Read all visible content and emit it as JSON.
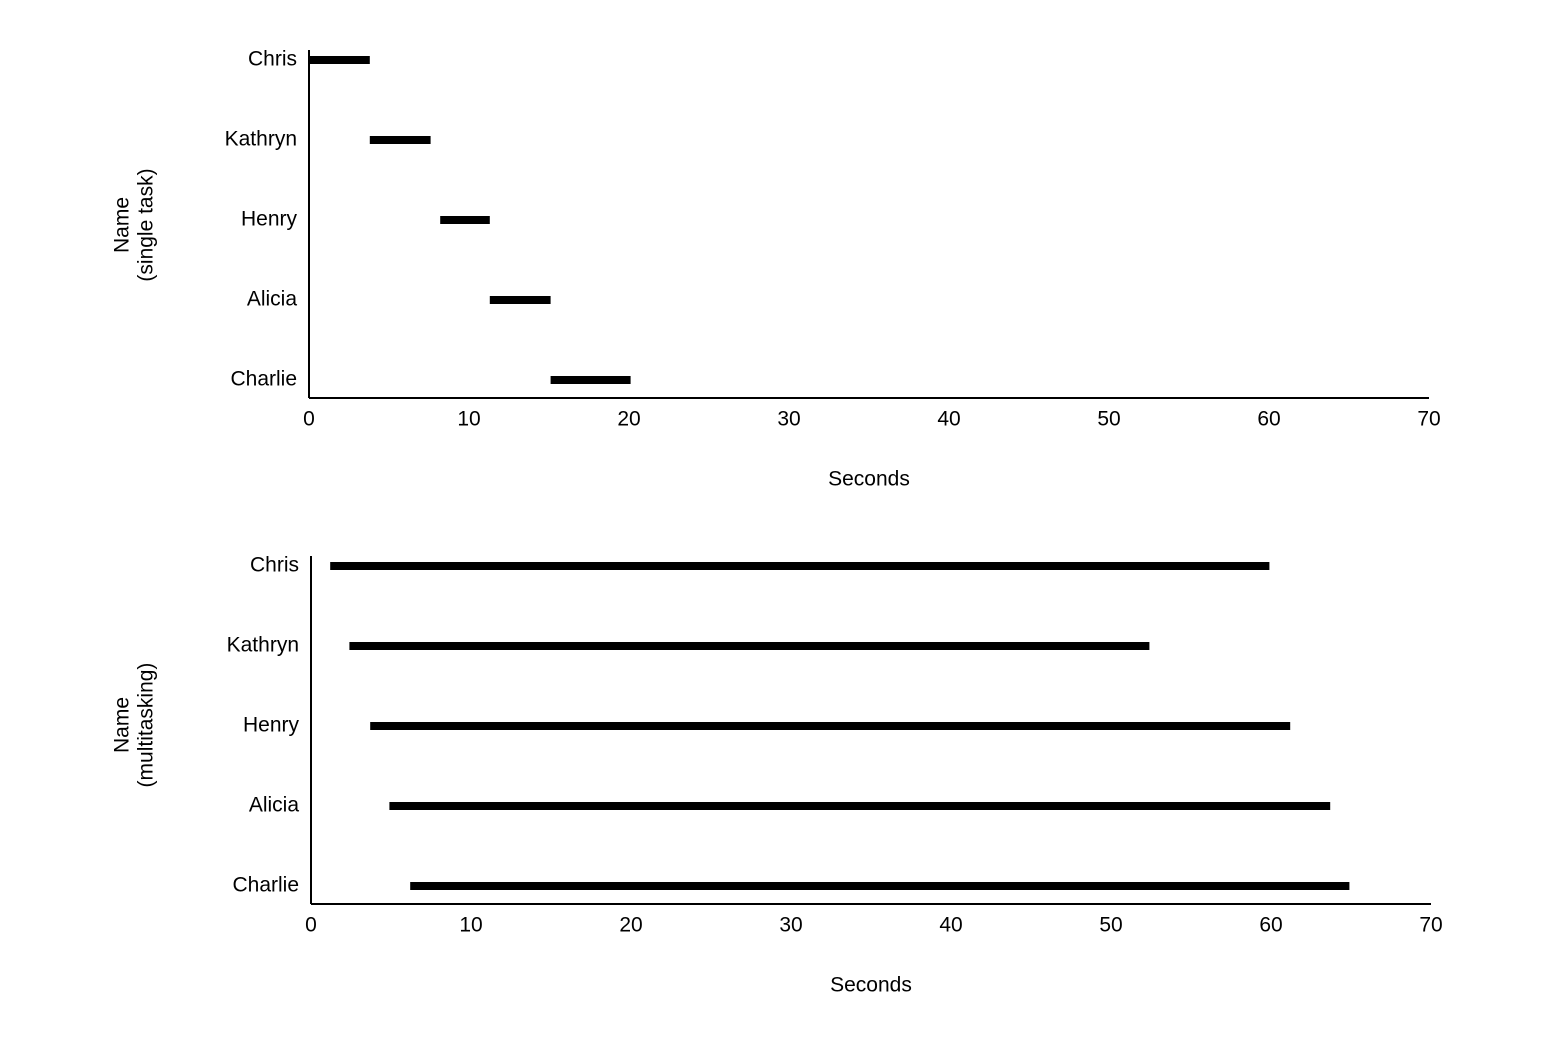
{
  "chart_data": [
    {
      "type": "range",
      "ylabel": [
        "Name",
        "(single task)"
      ],
      "xlabel": "Seconds",
      "categories": [
        "Chris",
        "Kathryn",
        "Henry",
        "Alicia",
        "Charlie"
      ],
      "start": [
        0,
        3.8,
        8.2,
        11.3,
        15.1
      ],
      "end": [
        3.8,
        7.6,
        11.3,
        15.1,
        20.1
      ],
      "color": "#000000",
      "xlim": [
        0,
        70
      ],
      "xticks": [
        0,
        10,
        20,
        30,
        40,
        50,
        60,
        70
      ]
    },
    {
      "type": "range",
      "ylabel": [
        "Name",
        "(multitasking)"
      ],
      "xlabel": "Seconds",
      "categories": [
        "Chris",
        "Kathryn",
        "Henry",
        "Alicia",
        "Charlie"
      ],
      "start": [
        1.2,
        2.4,
        3.7,
        4.9,
        6.2
      ],
      "end": [
        59.9,
        52.4,
        61.2,
        63.7,
        64.9
      ],
      "color": "#000000",
      "xlim": [
        0,
        70
      ],
      "xticks": [
        0,
        10,
        20,
        30,
        40,
        50,
        60,
        70
      ]
    }
  ]
}
